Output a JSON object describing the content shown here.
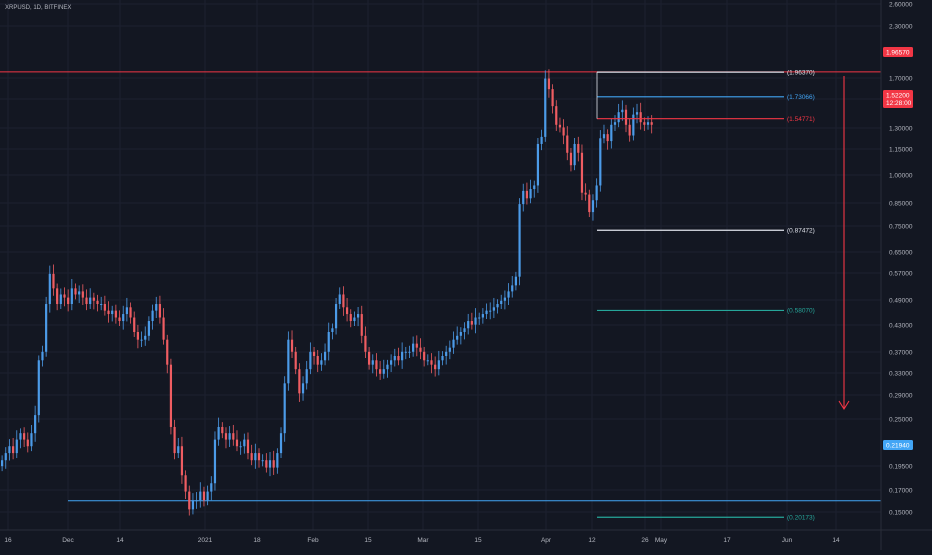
{
  "header": {
    "symbol_title": "XRPUSD, 1D, BITFINEX"
  },
  "colors": {
    "background": "#131722",
    "up": "#4c9be8",
    "down": "#ef5d62",
    "resistance": "#f23645",
    "support": "#42a5f5",
    "target_teal": "#26a69a",
    "white": "#e0e3eb",
    "text": "#b2b5be"
  },
  "price_scale": {
    "ticks": [
      "2.60000",
      "2.30000",
      "1.70000",
      "1.50000",
      "1.30000",
      "1.15000",
      "1.00000",
      "0.85000",
      "0.75000",
      "0.65000",
      "0.57000",
      "0.49000",
      "0.43000",
      "0.37000",
      "0.33000",
      "0.29000",
      "0.25000",
      "0.19500",
      "0.17000",
      "0.15000"
    ],
    "badges": [
      {
        "label": "1.96570",
        "color": "#f23645"
      },
      {
        "label": "1.52200",
        "sub": "12:28:00",
        "color": "#f23645"
      },
      {
        "label": "0.21940",
        "color": "#42a5f5"
      }
    ]
  },
  "time_axis": {
    "labels": [
      "16",
      "Dec",
      "14",
      "2021",
      "18",
      "Feb",
      "15",
      "Mar",
      "15",
      "Apr",
      "12",
      "26",
      "May",
      "17",
      "Jun",
      "14"
    ]
  },
  "levels": [
    {
      "name": "high",
      "label": "(1.96370)",
      "value": 1.9637,
      "color": "#e0e3eb"
    },
    {
      "name": "fib-upper",
      "label": "(1.73066)",
      "value": 1.73066,
      "color": "#42a5f5"
    },
    {
      "name": "fib-mid",
      "label": "(1.54771)",
      "value": 1.54771,
      "color": "#f23645"
    },
    {
      "name": "low",
      "label": "(0.87472)",
      "value": 0.87472,
      "color": "#e0e3eb"
    },
    {
      "name": "target-1",
      "label": "(0.58070)",
      "value": 0.5807,
      "color": "#26a69a"
    },
    {
      "name": "target-2",
      "label": "(0.20173)",
      "value": 0.20173,
      "color": "#26a69a"
    }
  ],
  "horizontal_lines": [
    {
      "name": "resistance-line",
      "value": 1.9657,
      "color": "#f23645"
    },
    {
      "name": "support-line",
      "value": 0.2194,
      "color": "#42a5f5"
    }
  ],
  "chart_data": {
    "type": "candlestick",
    "title": "XRPUSD, 1D, BITFINEX",
    "y_scale": "log",
    "ylim": [
      0.14,
      2.9
    ],
    "x_range": [
      "2020-11-08",
      "2021-06-22"
    ],
    "closes": [
      0.27,
      0.28,
      0.29,
      0.28,
      0.3,
      0.31,
      0.3,
      0.29,
      0.31,
      0.34,
      0.45,
      0.47,
      0.6,
      0.7,
      0.65,
      0.6,
      0.63,
      0.62,
      0.6,
      0.65,
      0.63,
      0.64,
      0.62,
      0.6,
      0.62,
      0.61,
      0.6,
      0.6,
      0.58,
      0.57,
      0.58,
      0.56,
      0.55,
      0.57,
      0.59,
      0.56,
      0.52,
      0.5,
      0.5,
      0.51,
      0.55,
      0.58,
      0.6,
      0.56,
      0.5,
      0.44,
      0.32,
      0.28,
      0.29,
      0.25,
      0.23,
      0.21,
      0.22,
      0.22,
      0.23,
      0.22,
      0.23,
      0.24,
      0.3,
      0.32,
      0.31,
      0.3,
      0.31,
      0.3,
      0.29,
      0.29,
      0.3,
      0.28,
      0.27,
      0.28,
      0.27,
      0.27,
      0.26,
      0.27,
      0.26,
      0.28,
      0.31,
      0.4,
      0.5,
      0.47,
      0.43,
      0.38,
      0.4,
      0.43,
      0.47,
      0.46,
      0.44,
      0.45,
      0.47,
      0.52,
      0.53,
      0.6,
      0.63,
      0.59,
      0.57,
      0.55,
      0.56,
      0.57,
      0.51,
      0.47,
      0.44,
      0.45,
      0.43,
      0.42,
      0.43,
      0.44,
      0.45,
      0.46,
      0.45,
      0.47,
      0.47,
      0.47,
      0.49,
      0.48,
      0.47,
      0.45,
      0.45,
      0.44,
      0.43,
      0.45,
      0.46,
      0.47,
      0.48,
      0.5,
      0.51,
      0.52,
      0.53,
      0.55,
      0.54,
      0.56,
      0.56,
      0.57,
      0.58,
      0.58,
      0.59,
      0.6,
      0.61,
      0.62,
      0.64,
      0.66,
      0.69,
      1.0,
      1.07,
      1.03,
      1.08,
      1.1,
      1.36,
      1.41,
      1.9,
      1.8,
      1.65,
      1.5,
      1.48,
      1.42,
      1.3,
      1.22,
      1.36,
      1.3,
      1.06,
      1.05,
      0.96,
      1.02,
      1.1,
      1.4,
      1.43,
      1.38,
      1.5,
      1.52,
      1.6,
      1.62,
      1.5,
      1.42,
      1.58,
      1.6,
      1.52,
      1.5,
      1.52,
      1.5
    ]
  }
}
